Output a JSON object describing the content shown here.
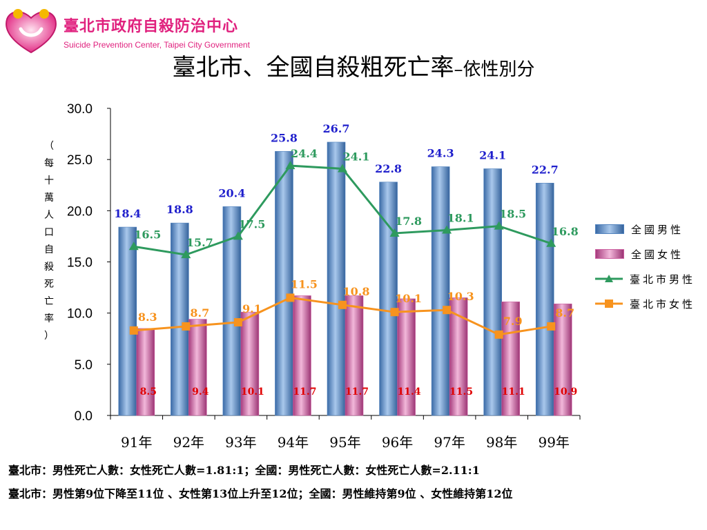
{
  "header": {
    "org_name": "臺北市政府自殺防治中心",
    "org_name_en": "Suicide Prevention Center, Taipei City Government"
  },
  "title": {
    "main": "臺北市、全國自殺粗死亡率",
    "sub": "–依性別分"
  },
  "chart_data": {
    "type": "bar",
    "ylabel": "（每十萬人口自殺死亡率）",
    "ylim": [
      0,
      30
    ],
    "yticks": [
      "0.0",
      "5.0",
      "10.0",
      "15.0",
      "20.0",
      "25.0",
      "30.0"
    ],
    "categories": [
      "91年",
      "92年",
      "93年",
      "94年",
      "95年",
      "96年",
      "97年",
      "98年",
      "99年"
    ],
    "series": [
      {
        "name": "全國男性",
        "kind": "bar",
        "color": "#4f81bd",
        "values": [
          18.4,
          18.8,
          20.4,
          25.8,
          26.7,
          22.8,
          24.3,
          24.1,
          22.7
        ],
        "labels": [
          "18.4",
          "18.8",
          "20.4",
          "25.8",
          "26.7",
          "22.8",
          "24.3",
          "24.1",
          "22.7"
        ],
        "label_color": "#1f1fcc"
      },
      {
        "name": "全國女性",
        "kind": "bar",
        "color": "#cc5fa0",
        "values": [
          8.5,
          9.4,
          10.1,
          11.7,
          11.7,
          11.4,
          11.5,
          11.1,
          10.9
        ],
        "labels": [
          "8.5",
          "9.4",
          "10.1",
          "11.7",
          "11.7",
          "11.4",
          "11.5",
          "11.1",
          "10.9"
        ],
        "label_color": "#e00000"
      },
      {
        "name": "臺北市男性",
        "kind": "line",
        "color": "#2e9a5e",
        "values": [
          16.5,
          15.7,
          17.5,
          24.4,
          24.1,
          17.8,
          18.1,
          18.5,
          16.8
        ],
        "labels": [
          "16.5",
          "15.7",
          "17.5",
          "24.4",
          "24.1",
          "17.8",
          "18.1",
          "18.5",
          "16.8"
        ],
        "label_color": "#2e9a5e"
      },
      {
        "name": "臺北市女性",
        "kind": "line",
        "color": "#f7931e",
        "values": [
          8.3,
          8.7,
          9.1,
          11.5,
          10.8,
          10.1,
          10.3,
          7.9,
          8.7
        ],
        "labels": [
          "8.3",
          "8.7",
          "9.1",
          "11.5",
          "10.8",
          "10.1",
          "10.3",
          "7.9",
          "8.7"
        ],
        "label_color": "#f7931e"
      }
    ],
    "grid": false,
    "legend_position": "right"
  },
  "notes": [
    "臺北市：男性死亡人數：女性死亡人數=1.81:1；全國：男性死亡人數：女性死亡人數=2.11:1",
    "臺北市：男性第9位下降至11位 、女性第13位上升至12位；全國：男性維持第9位 、女性維持第12位"
  ]
}
